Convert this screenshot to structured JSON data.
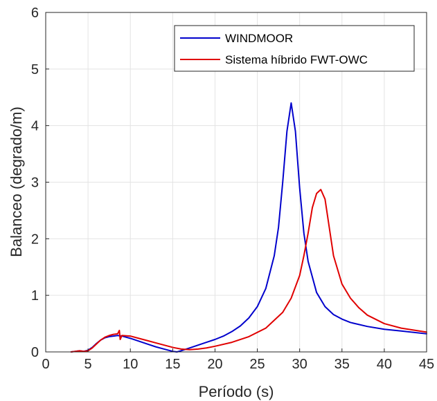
{
  "chart_data": {
    "type": "line",
    "xlabel": "Período (s)",
    "ylabel": "Balanceo (degrado/m)",
    "xlim": [
      0,
      45
    ],
    "ylim": [
      0,
      6
    ],
    "xticks": [
      0,
      5,
      10,
      15,
      20,
      25,
      30,
      35,
      40,
      45
    ],
    "yticks": [
      0,
      1,
      2,
      3,
      4,
      5,
      6
    ],
    "grid": true,
    "legend": "top-right",
    "series": [
      {
        "name": "WINDMOOR",
        "color": "#0000cc",
        "x": [
          3.0,
          3.5,
          4.0,
          4.5,
          5.0,
          5.5,
          6.0,
          6.5,
          7.0,
          7.5,
          8.0,
          8.5,
          9.0,
          10.0,
          11.0,
          12.0,
          13.0,
          14.0,
          15.0,
          15.5,
          16.0,
          17.0,
          18.0,
          19.0,
          20.0,
          21.0,
          22.0,
          23.0,
          24.0,
          25.0,
          26.0,
          27.0,
          27.5,
          28.0,
          28.5,
          29.0,
          29.5,
          30.0,
          30.5,
          31.0,
          32.0,
          33.0,
          34.0,
          35.0,
          36.0,
          38.0,
          40.0,
          42.0,
          45.0
        ],
        "y": [
          0.0,
          0.01,
          0.02,
          0.01,
          0.03,
          0.08,
          0.15,
          0.21,
          0.25,
          0.27,
          0.28,
          0.29,
          0.28,
          0.24,
          0.19,
          0.14,
          0.09,
          0.05,
          0.01,
          0.0,
          0.02,
          0.07,
          0.12,
          0.17,
          0.22,
          0.28,
          0.36,
          0.46,
          0.6,
          0.8,
          1.12,
          1.7,
          2.2,
          3.0,
          3.9,
          4.4,
          3.9,
          2.9,
          2.1,
          1.6,
          1.05,
          0.8,
          0.66,
          0.58,
          0.52,
          0.45,
          0.4,
          0.37,
          0.32
        ]
      },
      {
        "name": "Sistema híbrido FWT-OWC",
        "color": "#e00000",
        "x": [
          3.0,
          3.5,
          4.0,
          4.5,
          5.0,
          5.5,
          6.0,
          6.5,
          7.0,
          7.5,
          8.0,
          8.5,
          8.7,
          8.8,
          9.0,
          10.0,
          11.0,
          12.0,
          13.0,
          14.0,
          15.0,
          16.0,
          17.0,
          18.0,
          19.0,
          20.0,
          22.0,
          24.0,
          26.0,
          28.0,
          29.0,
          30.0,
          30.5,
          31.0,
          31.5,
          32.0,
          32.5,
          33.0,
          33.5,
          34.0,
          35.0,
          36.0,
          37.0,
          38.0,
          40.0,
          42.0,
          45.0
        ],
        "y": [
          0.0,
          0.01,
          0.02,
          0.01,
          0.02,
          0.07,
          0.14,
          0.21,
          0.26,
          0.29,
          0.31,
          0.32,
          0.38,
          0.22,
          0.29,
          0.28,
          0.24,
          0.2,
          0.16,
          0.12,
          0.08,
          0.05,
          0.04,
          0.05,
          0.07,
          0.1,
          0.17,
          0.27,
          0.42,
          0.7,
          0.95,
          1.35,
          1.7,
          2.1,
          2.55,
          2.8,
          2.87,
          2.7,
          2.2,
          1.7,
          1.2,
          0.95,
          0.78,
          0.65,
          0.5,
          0.42,
          0.35
        ]
      }
    ]
  }
}
